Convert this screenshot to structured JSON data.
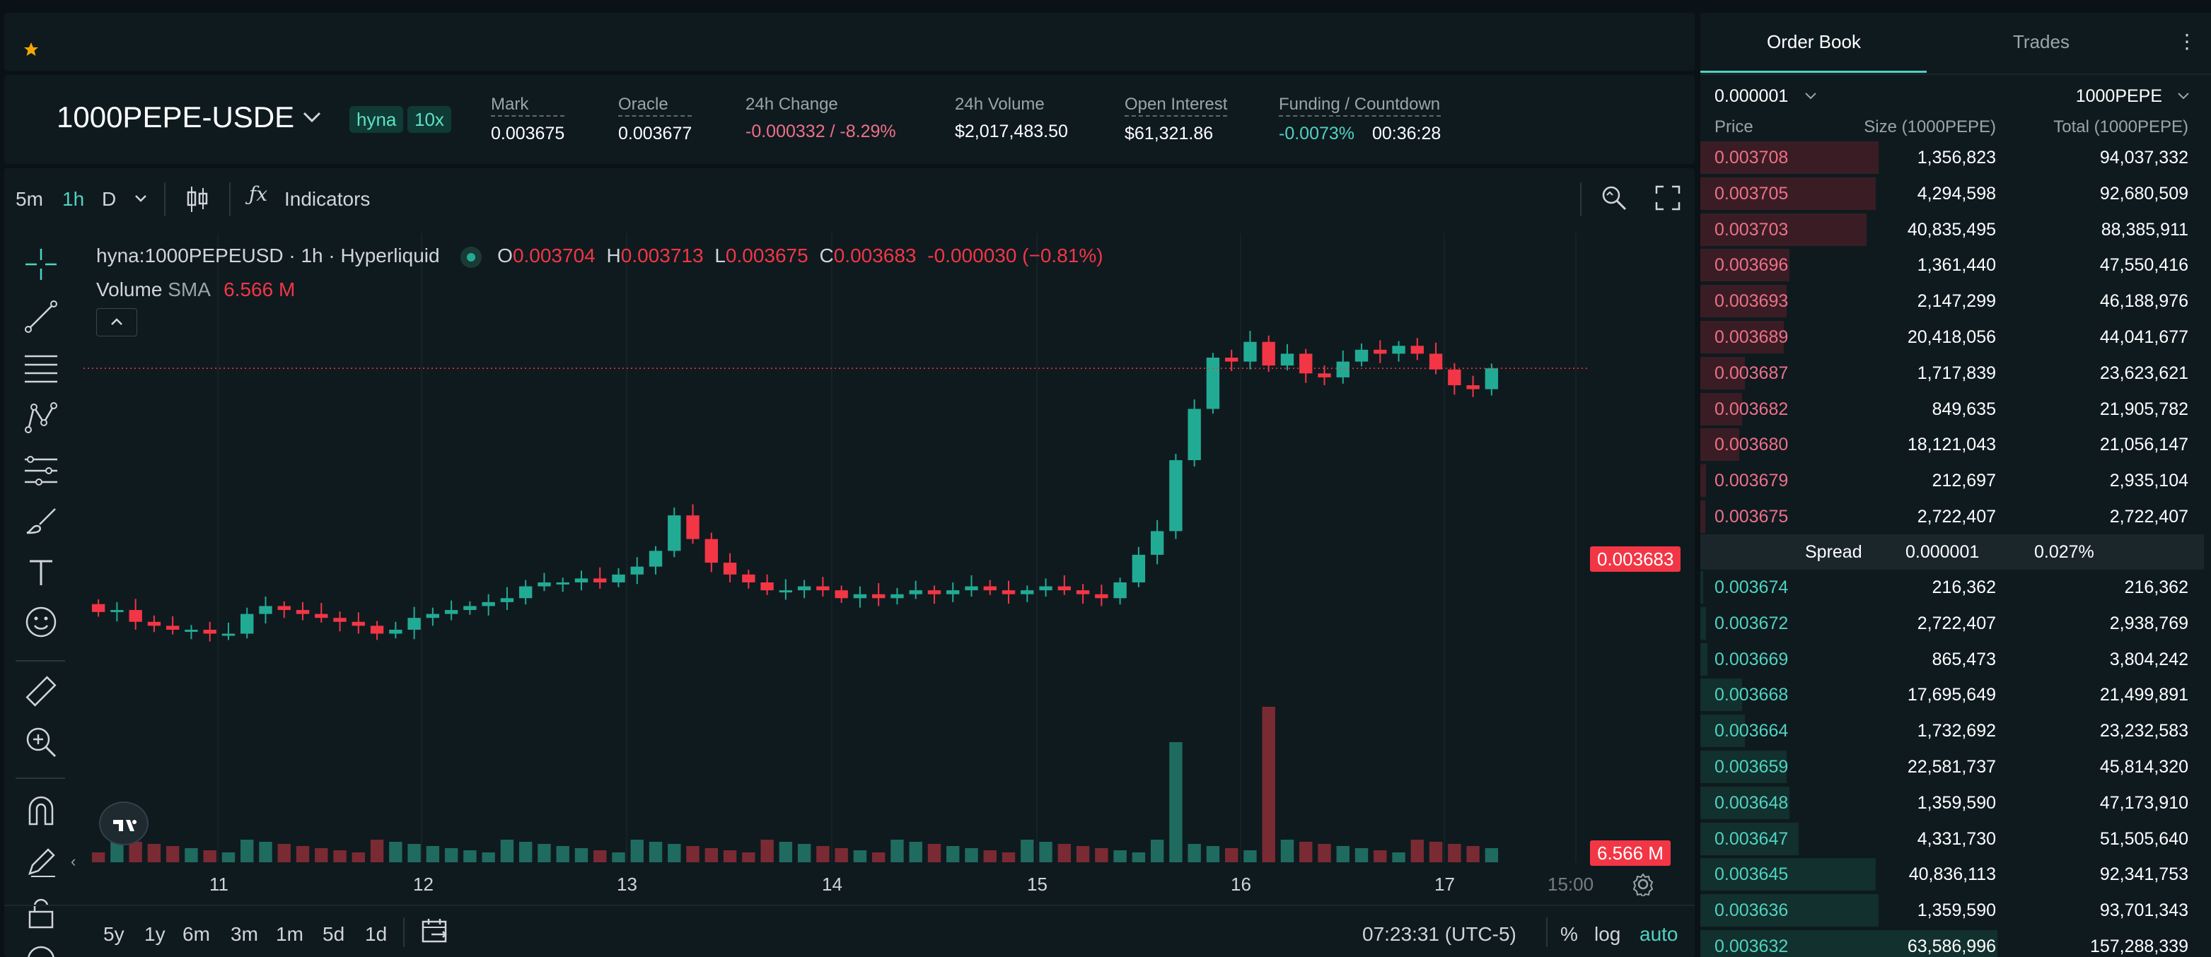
{
  "colors": {
    "bg": "#0b1215",
    "panel": "#0f1a1f",
    "accent": "#50d2c1",
    "down": "#f23645",
    "up": "#22ab94",
    "ask_text": "#ed7088",
    "bid_text": "#50d2c1"
  },
  "header": {
    "pair": "1000PEPE-USDE",
    "badge_exchange": "hyna",
    "badge_leverage": "10x",
    "stats": [
      {
        "label": "Mark",
        "value": "0.003675"
      },
      {
        "label": "Oracle",
        "value": "0.003677"
      },
      {
        "label": "24h Change",
        "value": "-0.000332 / -8.29%"
      },
      {
        "label": "24h Volume",
        "value": "$2,017,483.50"
      },
      {
        "label": "Open Interest",
        "value": "$61,321.86"
      },
      {
        "label": "Funding / Countdown",
        "value": "-0.0073%",
        "value2": "00:36:28"
      }
    ]
  },
  "toolbar": {
    "interval_5m": "5m",
    "interval_1h": "1h",
    "interval_d": "D",
    "indicators_label": "Indicators"
  },
  "chart": {
    "legend_title": "hyna:1000PEPEUSD · 1h · Hyperliquid",
    "ohlc": {
      "o_label": "O",
      "o": "0.003704",
      "h_label": "H",
      "h": "0.003713",
      "l_label": "L",
      "l": "0.003675",
      "c_label": "C",
      "c": "0.003683",
      "change": "-0.000030 (−0.81%)"
    },
    "volume_label": "Volume",
    "volume_sma_label": "SMA",
    "volume_sma_value": "6.566 M",
    "last_price_tag": "0.003683",
    "volume_tag": "6.566 M",
    "x_labels": [
      "11",
      "12",
      "13",
      "14",
      "15",
      "16",
      "17",
      "15:00"
    ],
    "time_ranges": [
      "5y",
      "1y",
      "6m",
      "3m",
      "1m",
      "5d",
      "1d"
    ],
    "clock": "07:23:31 (UTC-5)",
    "scale_percent": "%",
    "scale_log": "log",
    "scale_auto": "auto"
  },
  "chart_data": {
    "type": "candlestick",
    "x_axis": [
      "11",
      "12",
      "13",
      "14",
      "15",
      "16",
      "17"
    ],
    "price_range": [
      0.00295,
      0.0039
    ],
    "last_price": 0.003683,
    "closes": [
      0.003065,
      0.00307,
      0.00304,
      0.00303,
      0.00302,
      0.00302,
      0.00301,
      0.00301,
      0.00306,
      0.00308,
      0.00307,
      0.00306,
      0.00305,
      0.00304,
      0.00303,
      0.00301,
      0.00302,
      0.00305,
      0.00306,
      0.00307,
      0.00308,
      0.00309,
      0.0031,
      0.00313,
      0.00314,
      0.00314,
      0.00315,
      0.00314,
      0.00316,
      0.00318,
      0.00322,
      0.00331,
      0.00325,
      0.00319,
      0.00316,
      0.00314,
      0.00312,
      0.00312,
      0.00313,
      0.00312,
      0.0031,
      0.00311,
      0.0031,
      0.00311,
      0.00312,
      0.00311,
      0.00312,
      0.00313,
      0.00312,
      0.00311,
      0.00312,
      0.00313,
      0.00312,
      0.00311,
      0.0031,
      0.00314,
      0.00321,
      0.00327,
      0.00345,
      0.00358,
      0.00371,
      0.0037,
      0.00375,
      0.00369,
      0.00372,
      0.00367,
      0.00366,
      0.0037,
      0.00373,
      0.00372,
      0.00374,
      0.00372,
      0.00368,
      0.00364,
      0.00363,
      0.003683
    ]
  },
  "orderbook": {
    "tab_book": "Order Book",
    "tab_trades": "Trades",
    "tick_size": "0.000001",
    "unit": "1000PEPE",
    "col_price": "Price",
    "col_size": "Size (1000PEPE)",
    "col_total": "Total (1000PEPE)",
    "asks": [
      {
        "price": "0.003708",
        "size": "1,356,823",
        "total": "94,037,332",
        "depth": 0.6
      },
      {
        "price": "0.003705",
        "size": "4,294,598",
        "total": "92,680,509",
        "depth": 0.59
      },
      {
        "price": "0.003703",
        "size": "40,835,495",
        "total": "88,385,911",
        "depth": 0.56
      },
      {
        "price": "0.003696",
        "size": "1,361,440",
        "total": "47,550,416",
        "depth": 0.3
      },
      {
        "price": "0.003693",
        "size": "2,147,299",
        "total": "46,188,976",
        "depth": 0.29
      },
      {
        "price": "0.003689",
        "size": "20,418,056",
        "total": "44,041,677",
        "depth": 0.28
      },
      {
        "price": "0.003687",
        "size": "1,717,839",
        "total": "23,623,621",
        "depth": 0.15
      },
      {
        "price": "0.003682",
        "size": "849,635",
        "total": "21,905,782",
        "depth": 0.14
      },
      {
        "price": "0.003680",
        "size": "18,121,043",
        "total": "21,056,147",
        "depth": 0.13
      },
      {
        "price": "0.003679",
        "size": "212,697",
        "total": "2,935,104",
        "depth": 0.02
      },
      {
        "price": "0.003675",
        "size": "2,722,407",
        "total": "2,722,407",
        "depth": 0.017
      }
    ],
    "spread_label": "Spread",
    "spread_value": "0.000001",
    "spread_pct": "0.027%",
    "bids": [
      {
        "price": "0.003674",
        "size": "216,362",
        "total": "216,362",
        "depth": 0.001
      },
      {
        "price": "0.003672",
        "size": "2,722,407",
        "total": "2,938,769",
        "depth": 0.019
      },
      {
        "price": "0.003669",
        "size": "865,473",
        "total": "3,804,242",
        "depth": 0.024
      },
      {
        "price": "0.003668",
        "size": "17,695,649",
        "total": "21,499,891",
        "depth": 0.14
      },
      {
        "price": "0.003664",
        "size": "1,732,692",
        "total": "23,232,583",
        "depth": 0.15
      },
      {
        "price": "0.003659",
        "size": "22,581,737",
        "total": "45,814,320",
        "depth": 0.29
      },
      {
        "price": "0.003648",
        "size": "1,359,590",
        "total": "47,173,910",
        "depth": 0.3
      },
      {
        "price": "0.003647",
        "size": "4,331,730",
        "total": "51,505,640",
        "depth": 0.33
      },
      {
        "price": "0.003645",
        "size": "40,836,113",
        "total": "92,341,753",
        "depth": 0.59
      },
      {
        "price": "0.003636",
        "size": "1,359,590",
        "total": "93,701,343",
        "depth": 0.6
      },
      {
        "price": "0.003632",
        "size": "63,586,996",
        "total": "157,288,339",
        "depth": 1.0
      }
    ]
  }
}
